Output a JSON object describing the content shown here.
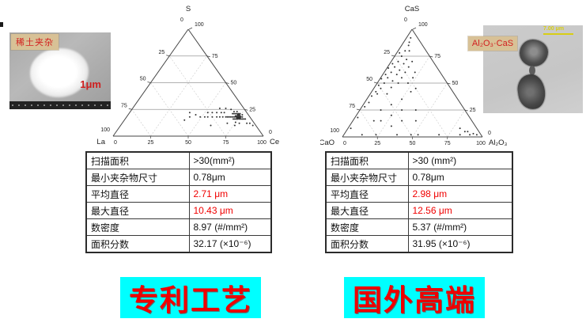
{
  "left": {
    "sem": {
      "label": "稀土夹杂",
      "scale": "1μm"
    },
    "table": {
      "rows": [
        {
          "label": "扫描面积",
          "value": ">30(mm²)"
        },
        {
          "label": "最小夹杂物尺寸",
          "value": "0.78μm"
        },
        {
          "label": "平均直径",
          "value": "2.71 μm"
        },
        {
          "label": "最大直径",
          "value": "10.43 μm"
        },
        {
          "label": "数密度",
          "value": "8.97 (#/mm²)"
        },
        {
          "label": "面积分数",
          "value": "32.17 (×10⁻⁶)"
        }
      ]
    },
    "caption": "专利工艺"
  },
  "right": {
    "sem": {
      "label": "Al₂O₃·CaS",
      "scale": "7.00 μm"
    },
    "table": {
      "rows": [
        {
          "label": "扫描面积",
          "value": ">30 (mm²)"
        },
        {
          "label": "最小夹杂物尺寸",
          "value": "0.78μm"
        },
        {
          "label": "平均直径",
          "value": "2.98 μm"
        },
        {
          "label": "最大直径",
          "value": "12.56 μm"
        },
        {
          "label": "数密度",
          "value": "5.37 (#/mm²)"
        },
        {
          "label": "面积分数",
          "value": "31.95 (×10⁻⁶)"
        }
      ]
    },
    "caption": "国外高端"
  },
  "colors": {
    "highlight_red": "#f00000",
    "caption_bg": "#00ffff",
    "caption_text": "#ee0000",
    "tag_bg": "#d8c196",
    "scalebar_yellow": "#d8ce14",
    "point_color": "#111111"
  },
  "chart_data": [
    {
      "type": "scatter",
      "subtype": "ternary",
      "top_label": "S",
      "left_label": "La",
      "right_label": "Ce",
      "axis_ticks": [
        0,
        25,
        50,
        75,
        100
      ],
      "grid": true,
      "axis_range": [
        0,
        100
      ],
      "points_format": [
        "La(bottom-left)",
        "Ce(bottom-right)",
        "S(top)"
      ],
      "points": [
        [
          7,
          75,
          18
        ],
        [
          8,
          74,
          18
        ],
        [
          6,
          76,
          18
        ],
        [
          9,
          73,
          18
        ],
        [
          7,
          74,
          19
        ],
        [
          8,
          75,
          17
        ],
        [
          6,
          75,
          19
        ],
        [
          9,
          74,
          17
        ],
        [
          7,
          76,
          17
        ],
        [
          8,
          73,
          19
        ],
        [
          5,
          77,
          18
        ],
        [
          10,
          72,
          18
        ],
        [
          7,
          72,
          21
        ],
        [
          8,
          76,
          16
        ],
        [
          6,
          73,
          21
        ],
        [
          9,
          75,
          16
        ],
        [
          11,
          71,
          18
        ],
        [
          5,
          74,
          21
        ],
        [
          8,
          71,
          21
        ],
        [
          12,
          70,
          18
        ],
        [
          6,
          78,
          16
        ],
        [
          10,
          74,
          16
        ],
        [
          7,
          77,
          16
        ],
        [
          9,
          70,
          21
        ],
        [
          13,
          69,
          18
        ],
        [
          5,
          79,
          16
        ],
        [
          11,
          73,
          16
        ],
        [
          6,
          71,
          23
        ],
        [
          14,
          68,
          18
        ],
        [
          10,
          69,
          21
        ],
        [
          4,
          80,
          16
        ],
        [
          12,
          72,
          16
        ],
        [
          8,
          69,
          23
        ],
        [
          15,
          67,
          18
        ],
        [
          4,
          76,
          20
        ],
        [
          7,
          73,
          20
        ],
        [
          9,
          72,
          19
        ],
        [
          6,
          74,
          20
        ],
        [
          16,
          66,
          18
        ],
        [
          18,
          64,
          18
        ],
        [
          20,
          62,
          18
        ],
        [
          15,
          63,
          22
        ],
        [
          22,
          60,
          18
        ],
        [
          17,
          61,
          22
        ],
        [
          25,
          57,
          18
        ],
        [
          20,
          58,
          22
        ],
        [
          28,
          54,
          18
        ],
        [
          23,
          55,
          22
        ],
        [
          30,
          52,
          18
        ],
        [
          26,
          52,
          22
        ],
        [
          33,
          49,
          18
        ],
        [
          12,
          75,
          13
        ],
        [
          10,
          78,
          12
        ],
        [
          35,
          45,
          20
        ],
        [
          40,
          42,
          18
        ],
        [
          38,
          40,
          22
        ],
        [
          3,
          85,
          12
        ],
        [
          5,
          83,
          12
        ],
        [
          2,
          88,
          10
        ],
        [
          45,
          40,
          15
        ],
        [
          30,
          60,
          10
        ],
        [
          14,
          76,
          10
        ],
        [
          18,
          70,
          12
        ],
        [
          12,
          62,
          26
        ],
        [
          16,
          58,
          26
        ],
        [
          9,
          66,
          25
        ]
      ]
    },
    {
      "type": "scatter",
      "subtype": "ternary",
      "top_label": "CaS",
      "left_label": "CaO",
      "right_label": "Al₂O₃",
      "axis_ticks": [
        0,
        25,
        50,
        75,
        100
      ],
      "grid": true,
      "axis_range": [
        0,
        100
      ],
      "points_format": [
        "CaO(bottom-left)",
        "Al₂O₃(bottom-right)",
        "CaS(top)"
      ],
      "points": [
        [
          10,
          5,
          85
        ],
        [
          15,
          5,
          80
        ],
        [
          12,
          8,
          80
        ],
        [
          20,
          5,
          75
        ],
        [
          18,
          10,
          72
        ],
        [
          25,
          5,
          70
        ],
        [
          15,
          15,
          70
        ],
        [
          22,
          10,
          68
        ],
        [
          30,
          5,
          65
        ],
        [
          20,
          15,
          65
        ],
        [
          28,
          10,
          62
        ],
        [
          35,
          5,
          60
        ],
        [
          25,
          15,
          60
        ],
        [
          32,
          10,
          58
        ],
        [
          18,
          22,
          60
        ],
        [
          40,
          5,
          55
        ],
        [
          30,
          15,
          55
        ],
        [
          22,
          23,
          55
        ],
        [
          38,
          10,
          52
        ],
        [
          45,
          5,
          50
        ],
        [
          28,
          22,
          50
        ],
        [
          35,
          15,
          50
        ],
        [
          50,
          5,
          45
        ],
        [
          42,
          12,
          46
        ],
        [
          25,
          30,
          45
        ],
        [
          55,
          5,
          40
        ],
        [
          48,
          12,
          40
        ],
        [
          30,
          28,
          42
        ],
        [
          8,
          4,
          88
        ],
        [
          5,
          3,
          92
        ],
        [
          20,
          2,
          78
        ],
        [
          30,
          2,
          68
        ],
        [
          40,
          2,
          58
        ],
        [
          50,
          2,
          48
        ],
        [
          60,
          2,
          38
        ],
        [
          70,
          2,
          28
        ],
        [
          80,
          2,
          18
        ],
        [
          90,
          2,
          8
        ],
        [
          55,
          3,
          42
        ],
        [
          65,
          3,
          32
        ],
        [
          45,
          1,
          54
        ],
        [
          35,
          1,
          64
        ],
        [
          40,
          25,
          35
        ],
        [
          50,
          20,
          30
        ],
        [
          45,
          30,
          25
        ],
        [
          60,
          15,
          25
        ],
        [
          55,
          25,
          20
        ],
        [
          65,
          20,
          15
        ],
        [
          35,
          40,
          25
        ],
        [
          50,
          35,
          15
        ],
        [
          60,
          30,
          10
        ],
        [
          40,
          45,
          15
        ],
        [
          70,
          15,
          15
        ],
        [
          85,
          13,
          2
        ],
        [
          75,
          23,
          2
        ],
        [
          60,
          38,
          2
        ],
        [
          45,
          53,
          2
        ],
        [
          30,
          68,
          2
        ],
        [
          15,
          83,
          2
        ],
        [
          8,
          90,
          2
        ],
        [
          50,
          48,
          2
        ],
        [
          5,
          92,
          3
        ],
        [
          8,
          87,
          5
        ],
        [
          3,
          95,
          2
        ],
        [
          10,
          85,
          5
        ],
        [
          12,
          80,
          8
        ]
      ]
    }
  ]
}
